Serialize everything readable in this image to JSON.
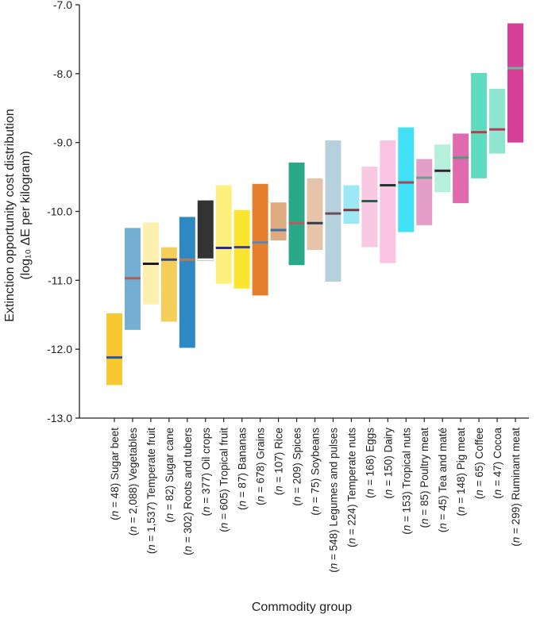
{
  "chart_data": {
    "type": "bar",
    "xlabel": "Commodity group",
    "ylabel_line1": "Extinction opportunity cost distribution",
    "ylabel_line2": "(log₁₀ ΔE per kilogram)",
    "ylim": [
      -13.0,
      -7.0
    ],
    "yticks": [
      "-7.0",
      "-8.0",
      "-9.0",
      "-10.0",
      "-11.0",
      "-12.0",
      "-13.0"
    ],
    "grid": false,
    "categories": [
      "(n = 48) Sugar beet",
      "(n = 2,088) Vegetables",
      "(n = 1,537) Temperate fruit",
      "(n = 82) Sugar cane",
      "(n = 302) Roots and tubers",
      "(n = 377) Oil crops",
      "(n = 605) Tropical fruit",
      "(n = 87) Bananas",
      "(n = 678) Grains",
      "(n = 107) Rice",
      "(n = 209) Spices",
      "(n = 75) Soybeans",
      "(n = 548) Legumes and pulses",
      "(n = 224) Temperate nuts",
      "(n = 168) Eggs",
      "(n = 150) Dairy",
      "(n = 153) Tropical nuts",
      "(n = 85) Poultry meat",
      "(n = 45) Tea and maté",
      "(n = 148) Pig meat",
      "(n = 65) Coffee",
      "(n = 47) Cocoa",
      "(n = 299) Ruminant meat"
    ],
    "low": [
      -12.52,
      -11.72,
      -11.35,
      -11.6,
      -11.98,
      -10.72,
      -11.05,
      -11.12,
      -11.22,
      -10.42,
      -10.78,
      -10.56,
      -11.02,
      -10.18,
      -10.52,
      -10.75,
      -10.3,
      -10.2,
      -9.72,
      -9.88,
      -9.52,
      -9.16,
      -9.0
    ],
    "high": [
      -11.48,
      -10.24,
      -10.16,
      -10.52,
      -10.08,
      -9.84,
      -9.62,
      -9.98,
      -9.6,
      -9.87,
      -9.29,
      -9.52,
      -8.97,
      -9.62,
      -9.35,
      -8.97,
      -8.78,
      -9.24,
      -9.03,
      -8.87,
      -7.99,
      -8.22,
      -7.27
    ],
    "median": [
      -12.12,
      -10.97,
      -10.76,
      -10.7,
      -10.7,
      -10.7,
      -10.53,
      -10.52,
      -10.45,
      -10.27,
      -10.17,
      -10.17,
      -10.03,
      -9.98,
      -9.85,
      -9.62,
      -9.58,
      -9.51,
      -9.41,
      -9.22,
      -8.85,
      -8.81,
      -7.92
    ],
    "colors": [
      "#f8c832",
      "#75aed3",
      "#fdefae",
      "#f6cf5b",
      "#2e88c2",
      "#333333",
      "#fef07e",
      "#fbe52f",
      "#e57f2e",
      "#deaa7f",
      "#29a98a",
      "#e5c4aa",
      "#b6d0de",
      "#9de8f5",
      "#f9c8e3",
      "#fbc3e3",
      "#43e1f6",
      "#e39fc8",
      "#b4f0dc",
      "#e06aaf",
      "#5fdbc0",
      "#8fe5d0",
      "#d83f99"
    ],
    "median_colors": [
      "#2456a3",
      "#b35e4a",
      "#1a1a30",
      "#28448f",
      "#c57850",
      "#ffffff",
      "#2a2a90",
      "#3a3aa0",
      "#6286b4",
      "#3c6f9d",
      "#b45d5e",
      "#2f3b4f",
      "#6a4d55",
      "#7b3a3a",
      "#2a5e4d",
      "#1f3528",
      "#a64560",
      "#6a9d8a",
      "#3a1f2f",
      "#4a9f7a",
      "#c43a4a",
      "#b43a55",
      "#68b89a"
    ]
  }
}
